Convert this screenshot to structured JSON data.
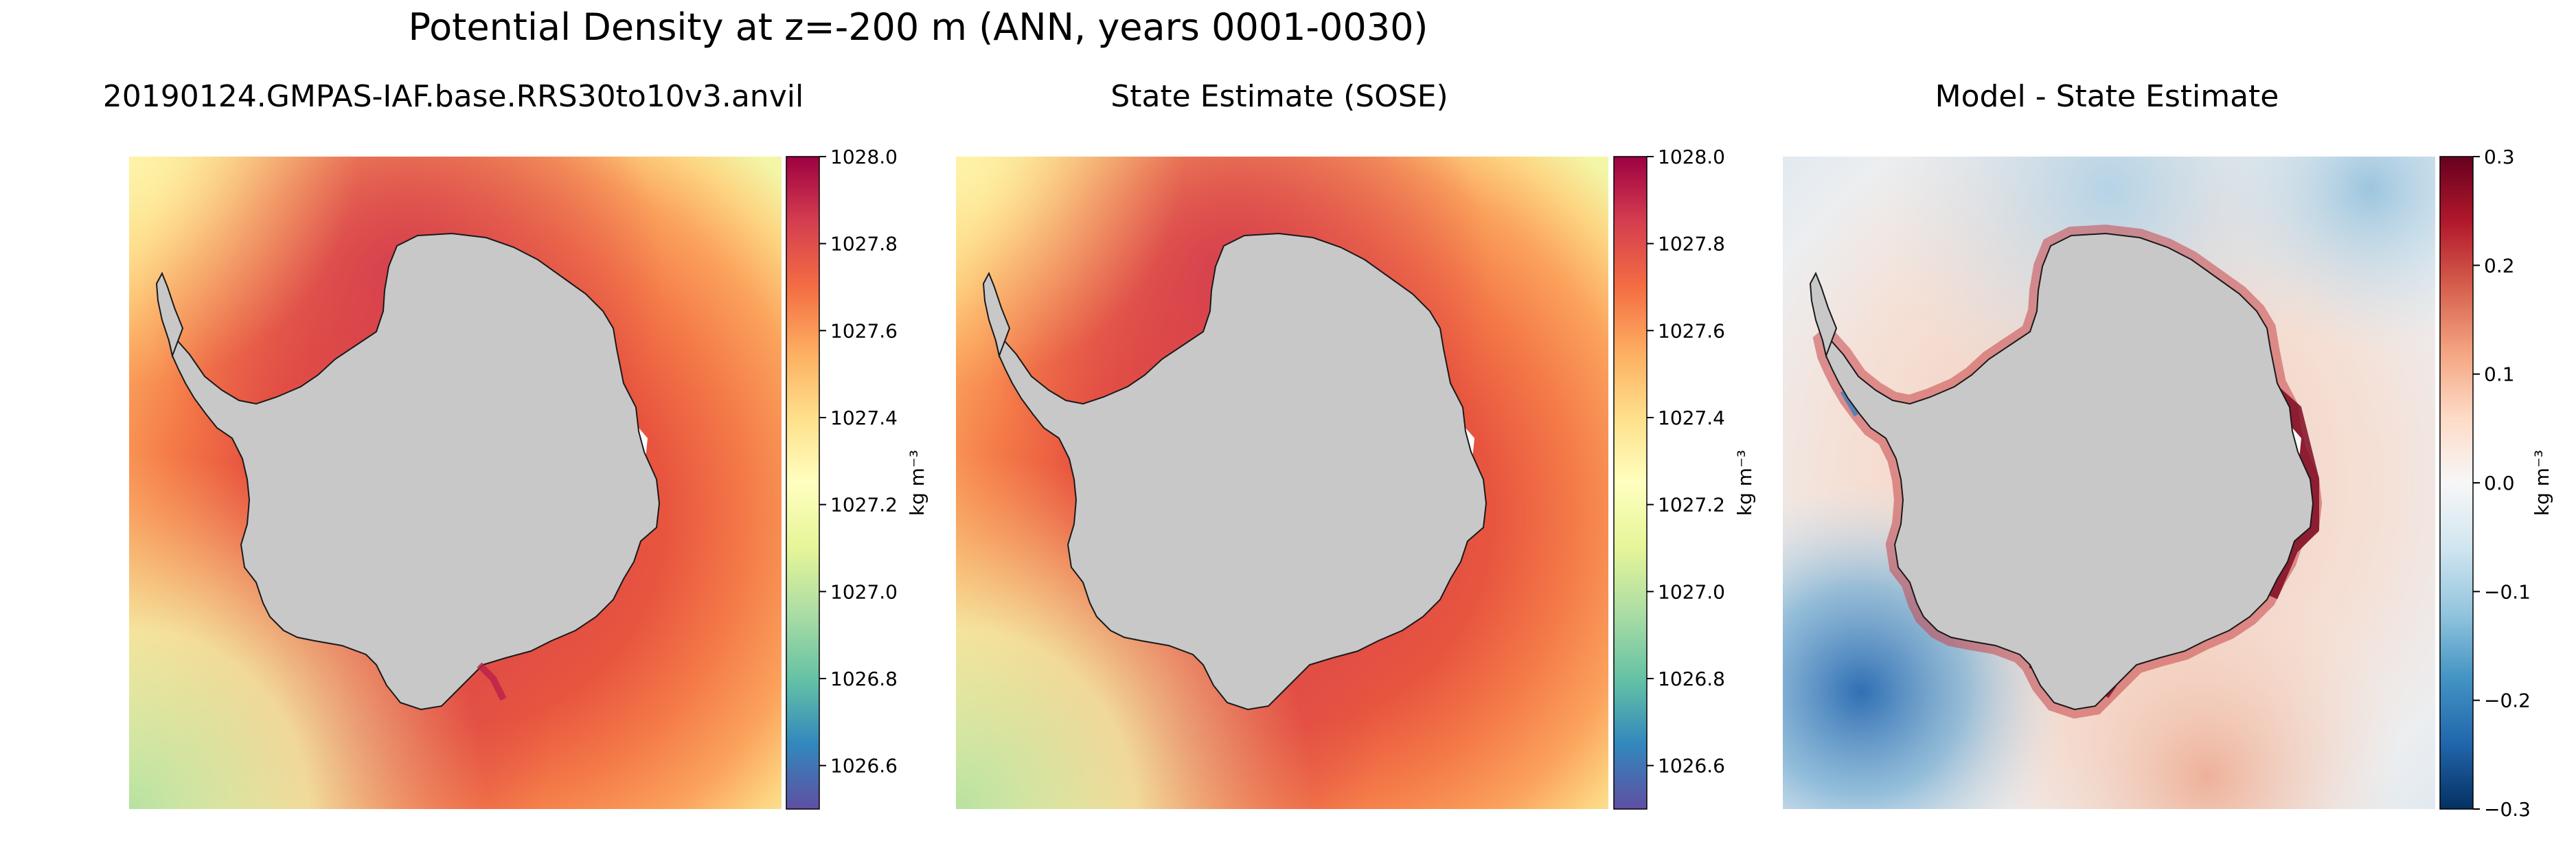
{
  "figure": {
    "suptitle": "Potential Density at z=-200 m (ANN, years 0001-0030)"
  },
  "panels": [
    {
      "title": "20190124.GMPAS-IAF.base.RRS30to10v3.anvil",
      "colorbar": {
        "label": "kg m⁻³",
        "ticks": [
          "1028.0",
          "1027.8",
          "1027.6",
          "1027.4",
          "1027.2",
          "1027.0",
          "1026.8",
          "1026.6"
        ],
        "range": [
          1026.5,
          1028.0
        ],
        "tick_values": [
          1028.0,
          1027.8,
          1027.6,
          1027.4,
          1027.2,
          1027.0,
          1026.8,
          1026.6
        ],
        "colormap": "Spectral_r"
      }
    },
    {
      "title": "State Estimate (SOSE)",
      "colorbar": {
        "label": "kg m⁻³",
        "ticks": [
          "1028.0",
          "1027.8",
          "1027.6",
          "1027.4",
          "1027.2",
          "1027.0",
          "1026.8",
          "1026.6"
        ],
        "range": [
          1026.5,
          1028.0
        ],
        "tick_values": [
          1028.0,
          1027.8,
          1027.6,
          1027.4,
          1027.2,
          1027.0,
          1026.8,
          1026.6
        ],
        "colormap": "Spectral_r"
      }
    },
    {
      "title": "Model - State Estimate",
      "colorbar": {
        "label": "kg m⁻³",
        "ticks": [
          "0.3",
          "0.2",
          "0.1",
          "0.0",
          "−0.1",
          "−0.2",
          "−0.3"
        ],
        "range": [
          -0.3,
          0.3
        ],
        "tick_values": [
          0.3,
          0.2,
          0.1,
          0.0,
          -0.1,
          -0.2,
          -0.3
        ],
        "colormap": "RdBu_r"
      }
    }
  ],
  "colors": {
    "land": "#c8c8c8",
    "coastline": "#1a1a1a"
  }
}
